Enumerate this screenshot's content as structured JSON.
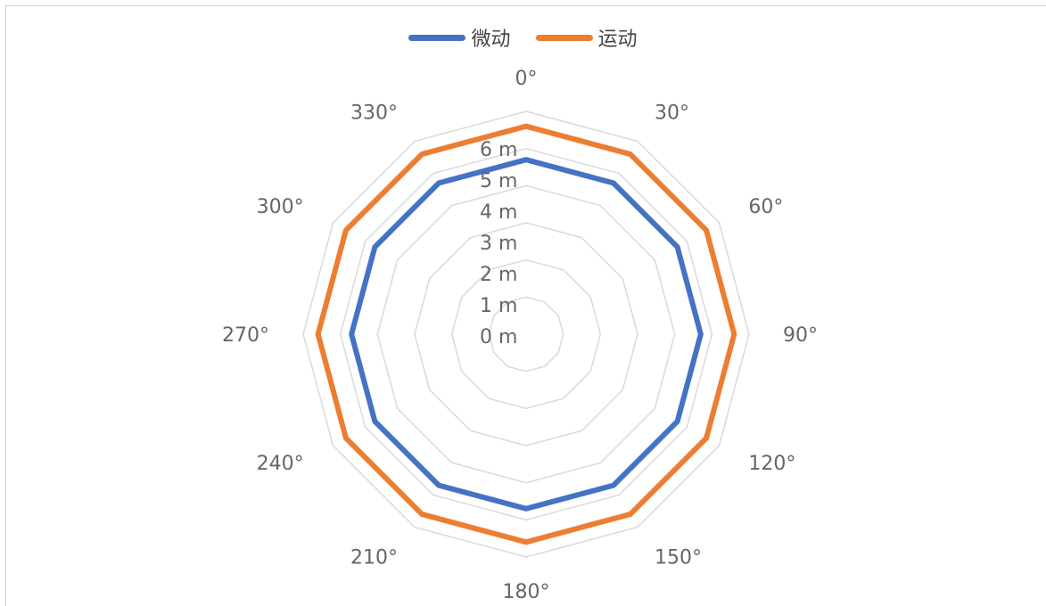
{
  "chart_data": {
    "type": "radar",
    "categories": [
      "0°",
      "30°",
      "60°",
      "90°",
      "120°",
      "150°",
      "180°",
      "210°",
      "240°",
      "270°",
      "300°",
      "330°"
    ],
    "series": [
      {
        "name": "微动",
        "color": "#4472C4",
        "values": [
          4.7,
          4.7,
          4.7,
          4.7,
          4.7,
          4.7,
          4.7,
          4.7,
          4.7,
          4.7,
          4.7,
          4.7
        ]
      },
      {
        "name": "运动",
        "color": "#ED7D31",
        "values": [
          5.6,
          5.6,
          5.6,
          5.6,
          5.6,
          5.6,
          5.6,
          5.6,
          5.6,
          5.6,
          5.6,
          5.6
        ]
      }
    ],
    "radial_ticks": [
      "0 m",
      "1 m",
      "2 m",
      "3 m",
      "4 m",
      "5 m",
      "6 m"
    ],
    "rlim": [
      0,
      6
    ],
    "grid": true,
    "legend_position": "top"
  }
}
